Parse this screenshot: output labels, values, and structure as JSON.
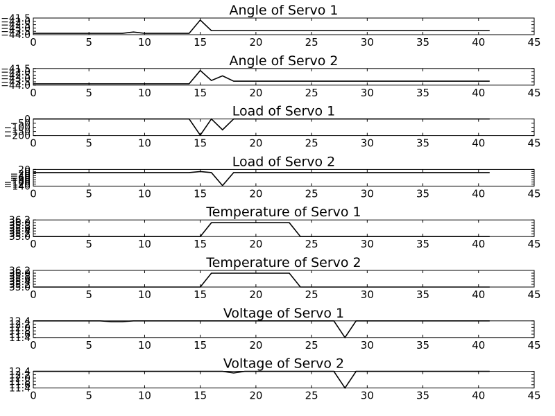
{
  "figure": {
    "background": "#ffffff",
    "line_color": "#000000"
  },
  "chart_data": [
    {
      "type": "line",
      "title": "Angle of Servo 1",
      "xlabel": "",
      "ylabel": "",
      "xlim": [
        0,
        45
      ],
      "ylim": [
        -44.0,
        -41.5
      ],
      "xticks": [
        0,
        5,
        10,
        15,
        20,
        25,
        30,
        35,
        40,
        45
      ],
      "yticks": [
        -44.0,
        -43.5,
        -43.0,
        -42.5,
        -42.0,
        -41.5
      ],
      "ytick_labels": [
        "−44.0",
        "−43.5",
        "−43.0",
        "−42.5",
        "−42.0",
        "−41.5"
      ],
      "grid": false,
      "series": [
        {
          "x": [
            0,
            8,
            9,
            10,
            14,
            15,
            16,
            41
          ],
          "y": [
            -43.8,
            -43.8,
            -43.6,
            -43.8,
            -43.8,
            -41.8,
            -43.4,
            -43.4
          ]
        }
      ]
    },
    {
      "type": "line",
      "title": "Angle of Servo 2",
      "xlabel": "",
      "ylabel": "",
      "xlim": [
        0,
        45
      ],
      "ylim": [
        -44.0,
        -41.5
      ],
      "xticks": [
        0,
        5,
        10,
        15,
        20,
        25,
        30,
        35,
        40,
        45
      ],
      "yticks": [
        -44.0,
        -43.5,
        -43.0,
        -42.5,
        -42.0,
        -41.5
      ],
      "ytick_labels": [
        "−44.0",
        "−43.5",
        "−43.0",
        "−42.5",
        "−42.0",
        "−41.5"
      ],
      "grid": false,
      "series": [
        {
          "x": [
            0,
            14,
            15,
            16,
            17,
            18,
            41
          ],
          "y": [
            -43.8,
            -43.8,
            -41.8,
            -43.3,
            -42.6,
            -43.4,
            -43.4
          ]
        }
      ]
    },
    {
      "type": "line",
      "title": "Load of Servo 1",
      "xlabel": "",
      "ylabel": "",
      "xlim": [
        0,
        45
      ],
      "ylim": [
        -200,
        0
      ],
      "xticks": [
        0,
        5,
        10,
        15,
        20,
        25,
        30,
        35,
        40,
        45
      ],
      "yticks": [
        -200,
        -150,
        -100,
        -50,
        0
      ],
      "ytick_labels": [
        "−200",
        "−150",
        "−100",
        "−50",
        "0"
      ],
      "grid": false,
      "series": [
        {
          "x": [
            0,
            14,
            15,
            16,
            17,
            18,
            41
          ],
          "y": [
            0,
            0,
            -195,
            0,
            -130,
            0,
            0
          ]
        }
      ]
    },
    {
      "type": "line",
      "title": "Load of Servo 2",
      "xlabel": "",
      "ylabel": "",
      "xlim": [
        0,
        45
      ],
      "ylim": [
        -140,
        20
      ],
      "xticks": [
        0,
        5,
        10,
        15,
        20,
        25,
        30,
        35,
        40,
        45
      ],
      "yticks": [
        -140,
        -120,
        -100,
        -80,
        -60,
        -40,
        -20,
        0,
        20
      ],
      "ytick_labels": [
        "−140",
        "−120",
        "−100",
        "−80",
        "−60",
        "−40",
        "−20",
        "0",
        "20"
      ],
      "grid": false,
      "series": [
        {
          "x": [
            0,
            14,
            15,
            16,
            17,
            18,
            41
          ],
          "y": [
            -10,
            -10,
            0,
            -10,
            -135,
            -10,
            -10
          ]
        }
      ]
    },
    {
      "type": "line",
      "title": "Temperature of Servo 1",
      "xlabel": "",
      "ylabel": "",
      "xlim": [
        0,
        45
      ],
      "ylim": [
        35.0,
        36.2
      ],
      "xticks": [
        0,
        5,
        10,
        15,
        20,
        25,
        30,
        35,
        40,
        45
      ],
      "yticks": [
        35.0,
        35.2,
        35.4,
        35.6,
        35.8,
        36.0,
        36.2
      ],
      "ytick_labels": [
        "35.0",
        "35.2",
        "35.4",
        "35.6",
        "35.8",
        "36.0",
        "36.2"
      ],
      "grid": false,
      "series": [
        {
          "x": [
            0,
            15,
            16,
            23,
            24,
            41
          ],
          "y": [
            35.0,
            35.0,
            36.0,
            36.0,
            35.0,
            35.0
          ]
        }
      ]
    },
    {
      "type": "line",
      "title": "Temperature of Servo 2",
      "xlabel": "",
      "ylabel": "",
      "xlim": [
        0,
        45
      ],
      "ylim": [
        35.0,
        36.2
      ],
      "xticks": [
        0,
        5,
        10,
        15,
        20,
        25,
        30,
        35,
        40,
        45
      ],
      "yticks": [
        35.0,
        35.2,
        35.4,
        35.6,
        35.8,
        36.0,
        36.2
      ],
      "ytick_labels": [
        "35.0",
        "35.2",
        "35.4",
        "35.6",
        "35.8",
        "36.0",
        "36.2"
      ],
      "grid": false,
      "series": [
        {
          "x": [
            0,
            15,
            16,
            23,
            24,
            41
          ],
          "y": [
            35.0,
            35.0,
            36.0,
            36.0,
            35.0,
            35.0
          ]
        }
      ]
    },
    {
      "type": "line",
      "title": "Voltage of Servo 1",
      "xlabel": "",
      "ylabel": "",
      "xlim": [
        0,
        45
      ],
      "ylim": [
        11.4,
        12.4
      ],
      "xticks": [
        0,
        5,
        10,
        15,
        20,
        25,
        30,
        35,
        40,
        45
      ],
      "yticks": [
        11.4,
        11.6,
        11.8,
        12.0,
        12.2,
        12.4
      ],
      "ytick_labels": [
        "11.4",
        "11.6",
        "11.8",
        "12.0",
        "12.2",
        "12.4"
      ],
      "grid": false,
      "series": [
        {
          "x": [
            0,
            6,
            7,
            8,
            9,
            27,
            28,
            29,
            41
          ],
          "y": [
            12.4,
            12.4,
            12.35,
            12.35,
            12.4,
            12.4,
            11.4,
            12.4,
            12.4
          ]
        }
      ]
    },
    {
      "type": "line",
      "title": "Voltage of Servo 2",
      "xlabel": "",
      "ylabel": "",
      "xlim": [
        0,
        45
      ],
      "ylim": [
        11.4,
        12.4
      ],
      "xticks": [
        0,
        5,
        10,
        15,
        20,
        25,
        30,
        35,
        40,
        45
      ],
      "yticks": [
        11.4,
        11.6,
        11.8,
        12.0,
        12.2,
        12.4
      ],
      "ytick_labels": [
        "11.4",
        "11.6",
        "11.8",
        "12.0",
        "12.2",
        "12.4"
      ],
      "grid": false,
      "series": [
        {
          "x": [
            0,
            17,
            18,
            19,
            27,
            28,
            29,
            41
          ],
          "y": [
            12.4,
            12.4,
            12.3,
            12.4,
            12.4,
            11.4,
            12.4,
            12.4
          ]
        }
      ]
    }
  ]
}
